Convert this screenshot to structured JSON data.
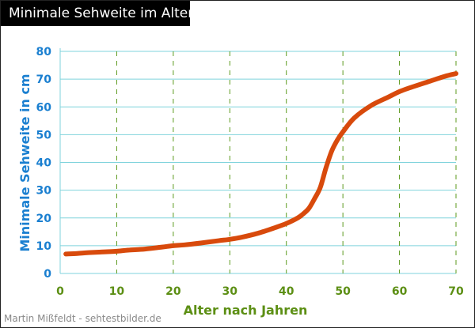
{
  "title": "Minimale Sehweite im Alter:",
  "credit": "Martin Mißfeldt - sehtestbilder.de",
  "colors": {
    "curve": "#d84a0c",
    "horizontal_grid": "#7fd3dc",
    "vertical_grid": "#5c9a1e",
    "y_axis_text": "#1a7fd0",
    "x_axis_text": "#5c8f14",
    "title_background": "#000000",
    "title_text": "#ffffff"
  },
  "chart_data": {
    "type": "line",
    "title": "Minimale Sehweite im Alter:",
    "xlabel": "Alter nach Jahren",
    "ylabel": "Minimale Sehweite in cm",
    "xlim": [
      0,
      70
    ],
    "ylim": [
      0,
      80
    ],
    "x_ticks": [
      "0",
      "10",
      "20",
      "30",
      "40",
      "50",
      "60",
      "70"
    ],
    "y_ticks": [
      "0",
      "10",
      "20",
      "30",
      "40",
      "50",
      "60",
      "70",
      "80"
    ],
    "grid": {
      "horizontal": "solid",
      "vertical": "dashed"
    },
    "series": [
      {
        "x": [
          1,
          3,
          5,
          8,
          10,
          12,
          15,
          18,
          20,
          22,
          25,
          28,
          30,
          32,
          35,
          38,
          40,
          42,
          43,
          44,
          45,
          46,
          47,
          48,
          49,
          50,
          52,
          55,
          58,
          60,
          62,
          65,
          68,
          70
        ],
        "y": [
          7,
          7.2,
          7.5,
          7.8,
          8,
          8.4,
          8.8,
          9.5,
          10,
          10.3,
          11,
          11.8,
          12.3,
          13,
          14.5,
          16.5,
          18,
          20,
          21.5,
          23.5,
          27,
          31,
          38,
          44,
          48,
          51,
          56,
          60.5,
          63.5,
          65.5,
          67,
          69,
          71,
          72
        ]
      }
    ]
  }
}
